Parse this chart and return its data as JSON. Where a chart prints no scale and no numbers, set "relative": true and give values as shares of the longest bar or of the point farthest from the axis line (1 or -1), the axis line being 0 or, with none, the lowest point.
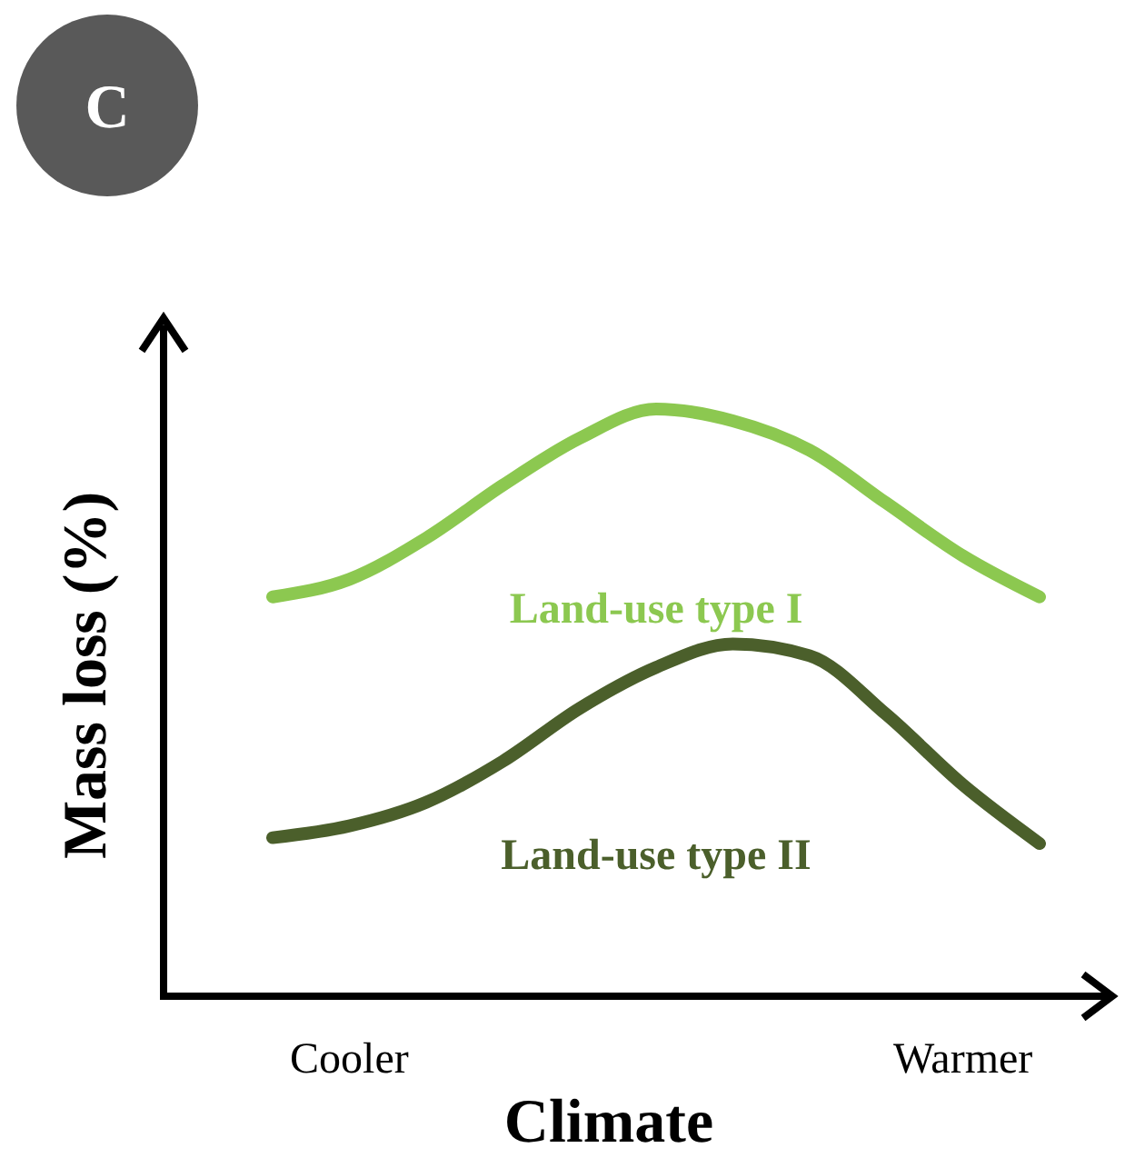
{
  "chart_data": {
    "type": "line",
    "title": "C",
    "xlabel": "Climate",
    "ylabel": "Mass loss (%)",
    "relative": true,
    "categories": [
      null,
      "Cooler",
      null,
      null,
      null,
      null,
      null,
      null,
      null,
      "Warmer",
      null
    ],
    "series": [
      {
        "name": "Land-use type I",
        "color": "#8cc850",
        "values": [
          0.68,
          0.71,
          0.78,
          0.87,
          0.95,
          1,
          0.98,
          0.93,
          0.84,
          0.75,
          0.68
        ]
      },
      {
        "name": "Land-use type II",
        "color": "#4b5f2b",
        "values": [
          0.27,
          0.29,
          0.33,
          0.4,
          0.49,
          0.56,
          0.6,
          0.58,
          0.48,
          0.36,
          0.26
        ]
      }
    ],
    "marker": "none",
    "line_style": "solid",
    "legend": false,
    "grid": false
  }
}
